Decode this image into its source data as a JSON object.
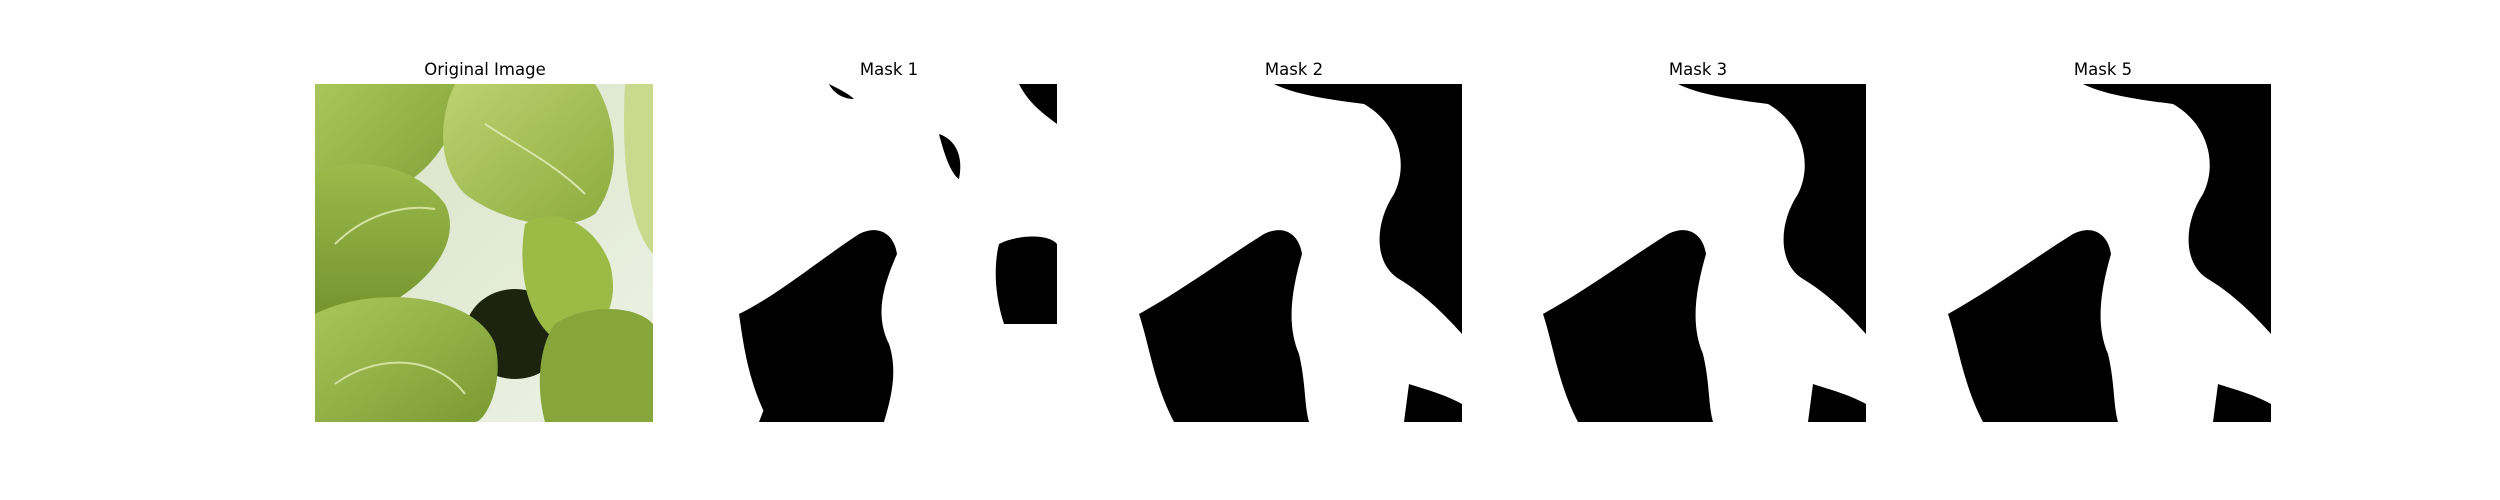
{
  "panels": [
    {
      "title": "Original Image",
      "kind": "photo",
      "subject": "green leafy vegetable leaves (bok choy)"
    },
    {
      "title": "Mask 1",
      "kind": "binary-mask"
    },
    {
      "title": "Mask 2",
      "kind": "binary-mask"
    },
    {
      "title": "Mask 3",
      "kind": "binary-mask"
    },
    {
      "title": "Mask 5",
      "kind": "binary-mask"
    }
  ],
  "colors": {
    "mask_foreground": "#ffffff",
    "mask_background": "#000000",
    "leaf_light": "#b7cf6d",
    "leaf_mid": "#8fae3f",
    "leaf_dark": "#5e7f24",
    "background_pale": "#e4ecd9"
  }
}
